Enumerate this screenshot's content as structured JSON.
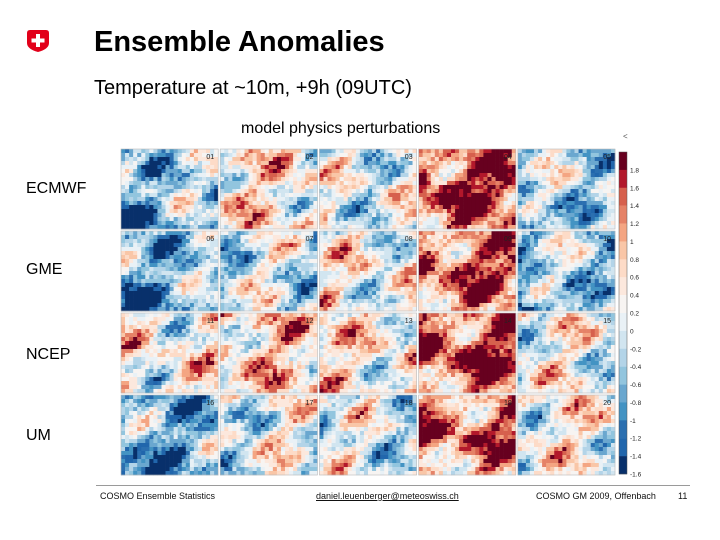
{
  "slide": {
    "title": "Ensemble Anomalies",
    "subtitle": "Temperature at ~10m, +9h (09UTC)",
    "panel_title": "model physics perturbations",
    "corner_mark": "<"
  },
  "row_labels": [
    "ECMWF",
    "GME",
    "NCEP",
    "UM"
  ],
  "member_labels": [
    "01",
    "02",
    "03",
    "04",
    "05",
    "06",
    "07",
    "08",
    "09",
    "10",
    "11",
    "12",
    "13",
    "14",
    "15",
    "16",
    "17",
    "18",
    "19",
    "20"
  ],
  "member_tone": [
    -0.6,
    0.3,
    -0.1,
    0.9,
    -0.4,
    -0.7,
    -0.3,
    0.1,
    0.7,
    -0.5,
    0.2,
    0.5,
    0.3,
    0.9,
    0.0,
    -0.8,
    -0.1,
    -0.2,
    0.6,
    0.1
  ],
  "colorbar": {
    "tick_labels": [
      "1.8",
      "1.6",
      "1.4",
      "1.2",
      "1",
      "0.8",
      "0.6",
      "0.4",
      "0.2",
      "0",
      "-0.2",
      "-0.4",
      "-0.6",
      "-0.8",
      "-1",
      "-1.2",
      "-1.4",
      "-1.6",
      "-1.8"
    ],
    "colors": [
      "#67001f",
      "#b2182b",
      "#d6604d",
      "#e58267",
      "#f4a582",
      "#f9c6a7",
      "#fddbc7",
      "#fce8dd",
      "#f7f4f2",
      "#e9f1f6",
      "#d1e5f0",
      "#b3d4e8",
      "#92c5de",
      "#6aa7cf",
      "#4393c3",
      "#2b6fb0",
      "#2166ac",
      "#08306b"
    ]
  },
  "footer": {
    "left": "COSMO Ensemble Statistics",
    "center": "daniel.leuenberger@meteoswiss.ch",
    "right": "COSMO GM 2009, Offenbach",
    "page": "11"
  },
  "colors": {
    "swiss_red": "#e2001a"
  }
}
